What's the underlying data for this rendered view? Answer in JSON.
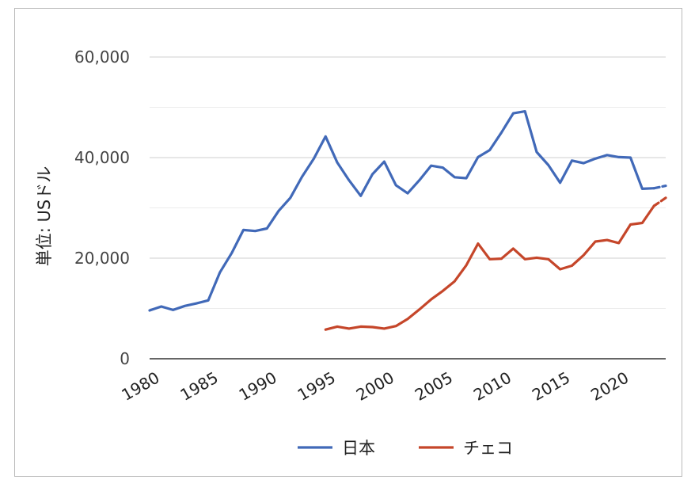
{
  "chart_data": {
    "type": "line",
    "ylabel": "単位: USドル",
    "ylim": [
      0,
      60000
    ],
    "yticks": [
      "0",
      "20,000",
      "40,000",
      "60,000"
    ],
    "minor_gridlines": [
      10000,
      30000,
      50000
    ],
    "xlim": [
      1980,
      2024
    ],
    "xticks": [
      "1980",
      "1985",
      "1990",
      "1995",
      "2000",
      "2005",
      "2010",
      "2015",
      "2020"
    ],
    "grid": true,
    "legend_position": "bottom",
    "series": [
      {
        "name": "日本",
        "color": "#4169b8",
        "x": [
          1980,
          1981,
          1982,
          1983,
          1984,
          1985,
          1986,
          1987,
          1988,
          1989,
          1990,
          1991,
          1992,
          1993,
          1994,
          1995,
          1996,
          1997,
          1998,
          1999,
          2000,
          2001,
          2002,
          2003,
          2004,
          2005,
          2006,
          2007,
          2008,
          2009,
          2010,
          2011,
          2012,
          2013,
          2014,
          2015,
          2016,
          2017,
          2018,
          2019,
          2020,
          2021,
          2022,
          2023,
          2024
        ],
        "values": [
          9600,
          10400,
          9700,
          10500,
          11000,
          11600,
          17200,
          21000,
          25600,
          25400,
          25900,
          29400,
          32000,
          36200,
          39800,
          44200,
          39000,
          35500,
          32400,
          36700,
          39200,
          34500,
          32900,
          35500,
          38400,
          38000,
          36100,
          35900,
          40100,
          41500,
          45000,
          48800,
          49200,
          41100,
          38500,
          35000,
          39400,
          38900,
          39800,
          40500,
          40100,
          40000,
          33800,
          33900,
          34400
        ],
        "dashed_from_year": 2023
      },
      {
        "name": "チェコ",
        "color": "#c5462a",
        "x": [
          1995,
          1996,
          1997,
          1998,
          1999,
          2000,
          2001,
          2002,
          2003,
          2004,
          2005,
          2006,
          2007,
          2008,
          2009,
          2010,
          2011,
          2012,
          2013,
          2014,
          2015,
          2016,
          2017,
          2018,
          2019,
          2020,
          2021,
          2022,
          2023,
          2024
        ],
        "values": [
          5800,
          6400,
          6000,
          6400,
          6300,
          6000,
          6500,
          7900,
          9800,
          11800,
          13500,
          15400,
          18600,
          22900,
          19800,
          19900,
          21900,
          19800,
          20100,
          19800,
          17800,
          18500,
          20600,
          23300,
          23600,
          23000,
          26700,
          27000,
          30400,
          32000
        ],
        "dashed_from_year": 2023
      }
    ]
  }
}
